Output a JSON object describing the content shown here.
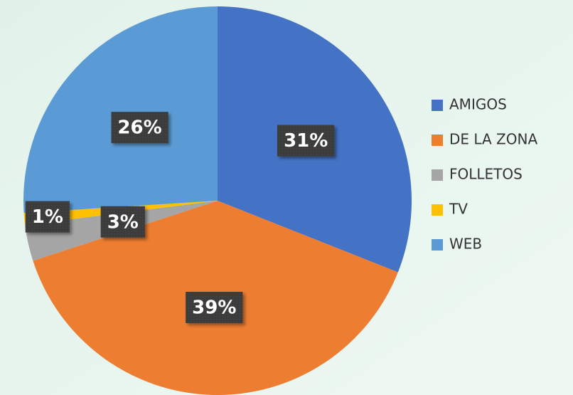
{
  "chart_data": {
    "type": "pie",
    "categories": [
      "AMIGOS",
      "DE LA ZONA",
      "FOLLETOS",
      "TV",
      "WEB"
    ],
    "values": [
      31,
      39,
      3,
      1,
      26
    ],
    "value_labels": [
      "31%",
      "39%",
      "3%",
      "1%",
      "26%"
    ],
    "colors": [
      "#4472c4",
      "#ed7d31",
      "#a5a5a5",
      "#ffc000",
      "#5b9bd5"
    ],
    "legend": "right"
  }
}
